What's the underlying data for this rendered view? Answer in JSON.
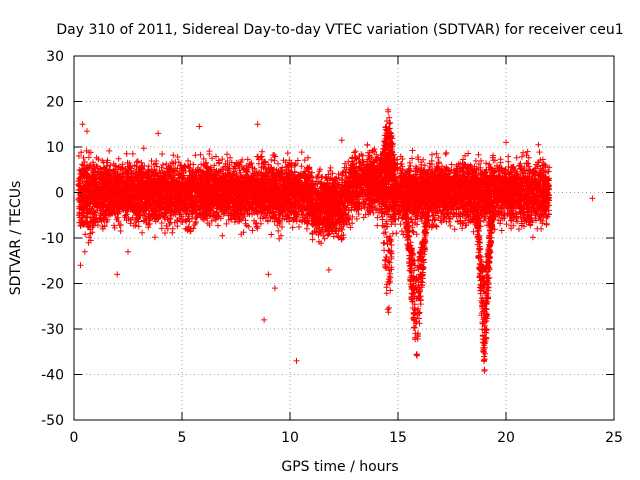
{
  "chart_data": {
    "type": "scatter",
    "title": "Day 310 of 2011, Sidereal Day-to-day VTEC variation (SDTVAR) for receiver ceu1",
    "xlabel": "GPS time / hours",
    "ylabel": "SDTVAR / TECUs",
    "xlim": [
      0,
      25
    ],
    "ylim": [
      -50,
      30
    ],
    "xticks": [
      0,
      5,
      10,
      15,
      20,
      25
    ],
    "yticks": [
      30,
      20,
      10,
      0,
      -10,
      -20,
      -30,
      -40,
      -50
    ],
    "grid": true,
    "marker": "plus",
    "color": "#ff0000",
    "series": [
      {
        "name": "SDTVAR",
        "description": "Dense noise band roughly -10..+8 TECU from 0.2 h to 22 h, with large negative excursions near 14.7 h, 15.7 h and 19 h",
        "band": {
          "x_start": 0.2,
          "x_end": 22.0,
          "y_low": -10,
          "y_high": 8
        },
        "excursions": [
          {
            "x": [
              14.2,
              14.9
            ],
            "y_min": -30,
            "y_max": 20
          },
          {
            "x": [
              15.3,
              16.4
            ],
            "y_min": -38,
            "y_max": -5
          },
          {
            "x": [
              18.6,
              19.4
            ],
            "y_min": -40,
            "y_max": -5
          }
        ],
        "outliers": [
          {
            "x": 0.4,
            "y": 15
          },
          {
            "x": 0.6,
            "y": 13.5
          },
          {
            "x": 2.0,
            "y": -18
          },
          {
            "x": 2.5,
            "y": -13
          },
          {
            "x": 3.9,
            "y": 13
          },
          {
            "x": 5.8,
            "y": 14.5
          },
          {
            "x": 8.8,
            "y": -28
          },
          {
            "x": 9.3,
            "y": -21
          },
          {
            "x": 10.3,
            "y": -37
          },
          {
            "x": 12.4,
            "y": 11.5
          },
          {
            "x": 21.5,
            "y": 10.5
          },
          {
            "x": 24.0,
            "y": -1.3
          },
          {
            "x": 20.0,
            "y": 11
          },
          {
            "x": 8.5,
            "y": 15
          },
          {
            "x": 9.0,
            "y": -18
          },
          {
            "x": 11.8,
            "y": -17
          },
          {
            "x": 0.3,
            "y": -16
          },
          {
            "x": 0.5,
            "y": -13
          }
        ]
      }
    ]
  }
}
